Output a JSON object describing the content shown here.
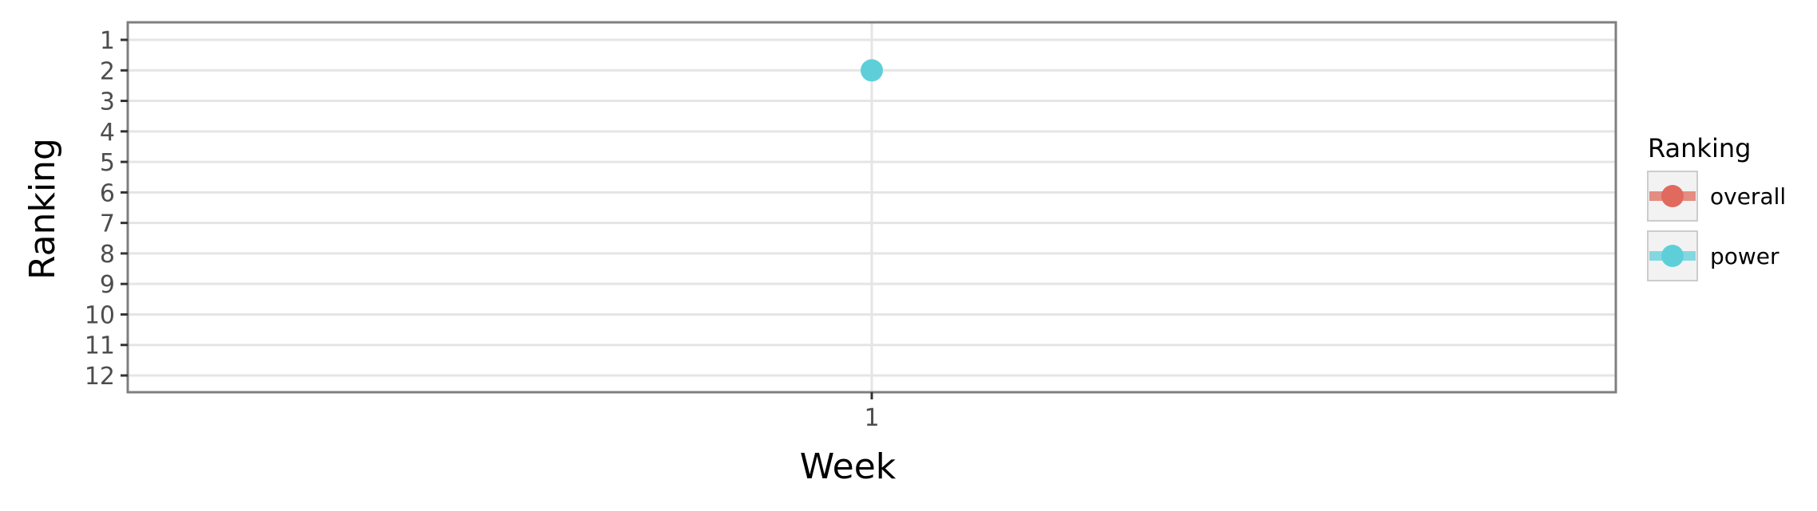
{
  "chart_data": {
    "type": "line",
    "title": "",
    "xlabel": "Week",
    "ylabel": "Ranking",
    "x_categories": [
      "1"
    ],
    "y_ticks": [
      1,
      2,
      3,
      4,
      5,
      6,
      7,
      8,
      9,
      10,
      11,
      12
    ],
    "ylim": [
      1,
      12
    ],
    "y_reversed": true,
    "grid": true,
    "legend": {
      "title": "Ranking",
      "placement": "right",
      "entries": [
        {
          "label": "overall",
          "color": "#e06a5e"
        },
        {
          "label": "power",
          "color": "#5ecfd9"
        }
      ]
    },
    "series": [
      {
        "name": "overall",
        "color": "#e06a5e",
        "points": []
      },
      {
        "name": "power",
        "color": "#5ecfd9",
        "points": [
          {
            "x": "1",
            "y": 2
          }
        ]
      }
    ]
  }
}
